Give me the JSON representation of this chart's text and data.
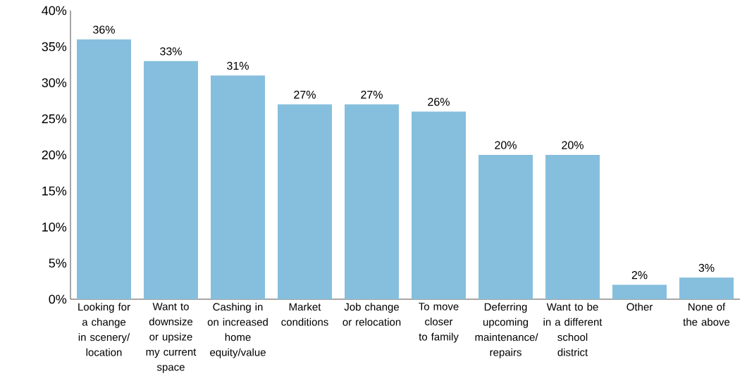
{
  "chart_data": {
    "type": "bar",
    "categories": [
      "Looking for a change in scenery/ location",
      "Want to downsize or upsize my current space",
      "Cashing in on increased home equity/value",
      "Market conditions",
      "Job change or relocation",
      "To move closer to family",
      "Deferring upcoming maintenance/ repairs",
      "Want to be in a different school district",
      "Other",
      "None of the above"
    ],
    "values": [
      36,
      33,
      31,
      27,
      27,
      26,
      20,
      20,
      2,
      3
    ],
    "value_labels": [
      "36%",
      "33%",
      "31%",
      "27%",
      "27%",
      "26%",
      "20%",
      "20%",
      "2%",
      "3%"
    ],
    "color": "#86bfdd",
    "ylim": [
      0,
      40
    ],
    "yticks": [
      {
        "value": 0,
        "label": "0%"
      },
      {
        "value": 5,
        "label": "5%"
      },
      {
        "value": 10,
        "label": "10%"
      },
      {
        "value": 15,
        "label": "15%"
      },
      {
        "value": 20,
        "label": "20%"
      },
      {
        "value": 25,
        "label": "25%"
      },
      {
        "value": 30,
        "label": "30%"
      },
      {
        "value": 35,
        "label": "35%"
      },
      {
        "value": 40,
        "label": "40%"
      }
    ],
    "grid": false
  }
}
